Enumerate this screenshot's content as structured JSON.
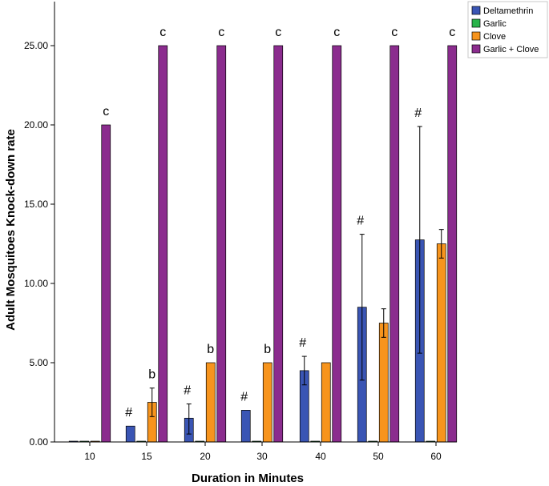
{
  "chart_data": {
    "type": "bar",
    "xlabel": "Duration in Minutes",
    "ylabel": "Adult Mosquitoes Knock-down rate",
    "categories": [
      "10",
      "15",
      "20",
      "30",
      "40",
      "50",
      "60"
    ],
    "ylim": [
      0,
      25
    ],
    "yticks": [
      "0.00",
      "5.00",
      "10.00",
      "15.00",
      "20.00",
      "25.00"
    ],
    "ytick_values": [
      0,
      5,
      10,
      15,
      20,
      25
    ],
    "grid": false,
    "legend_position": "top-right",
    "series": [
      {
        "name": "Deltamethrin",
        "color": "#3a55b4",
        "values": [
          0,
          1,
          1.5,
          2,
          4.5,
          8.5,
          12.75
        ],
        "err_low": [
          0,
          0,
          0.5,
          0,
          3.6,
          3.9,
          5.6
        ],
        "err_high": [
          0,
          0,
          2.4,
          0,
          5.4,
          13.1,
          19.9
        ]
      },
      {
        "name": "Garlic",
        "color": "#29b34a",
        "values": [
          0,
          0,
          0,
          0,
          0,
          0,
          0
        ],
        "err_low": [
          null,
          null,
          null,
          null,
          null,
          null,
          null
        ],
        "err_high": [
          null,
          null,
          null,
          null,
          null,
          null,
          null
        ]
      },
      {
        "name": "Clove",
        "color": "#f7941d",
        "values": [
          0,
          2.5,
          5,
          5,
          5,
          7.5,
          12.5
        ],
        "err_low": [
          null,
          1.6,
          null,
          null,
          null,
          6.6,
          11.6
        ],
        "err_high": [
          null,
          3.4,
          null,
          null,
          null,
          8.4,
          13.4
        ]
      },
      {
        "name": "Garlic + Clove",
        "color": "#8b2c8e",
        "values": [
          20,
          25,
          25,
          25,
          25,
          25,
          25
        ],
        "err_low": [
          null,
          null,
          null,
          null,
          null,
          null,
          null
        ],
        "err_high": [
          null,
          null,
          null,
          null,
          null,
          null,
          null
        ]
      }
    ],
    "annotations": [
      {
        "category": "10",
        "series": "Garlic + Clove",
        "text": "c",
        "y": 20
      },
      {
        "category": "15",
        "series": "Garlic + Clove",
        "text": "c",
        "y": 25
      },
      {
        "category": "20",
        "series": "Garlic + Clove",
        "text": "c",
        "y": 25
      },
      {
        "category": "30",
        "series": "Garlic + Clove",
        "text": "c",
        "y": 25
      },
      {
        "category": "40",
        "series": "Garlic + Clove",
        "text": "c",
        "y": 25
      },
      {
        "category": "50",
        "series": "Garlic + Clove",
        "text": "c",
        "y": 25
      },
      {
        "category": "60",
        "series": "Garlic + Clove",
        "text": "c",
        "y": 25
      },
      {
        "category": "15",
        "series": "Clove",
        "text": "b",
        "y": 3.4
      },
      {
        "category": "20",
        "series": "Clove",
        "text": "b",
        "y": 5
      },
      {
        "category": "30",
        "series": "Clove",
        "text": "b",
        "y": 5
      },
      {
        "category": "15",
        "series": "Deltamethrin",
        "text": "#",
        "y": 1
      },
      {
        "category": "20",
        "series": "Deltamethrin",
        "text": "#",
        "y": 2.4
      },
      {
        "category": "30",
        "series": "Deltamethrin",
        "text": "#",
        "y": 2
      },
      {
        "category": "40",
        "series": "Deltamethrin",
        "text": "#",
        "y": 5.4
      },
      {
        "category": "50",
        "series": "Deltamethrin",
        "text": "#",
        "y": 13.1
      },
      {
        "category": "60",
        "series": "Deltamethrin",
        "text": "#",
        "y": 19.9
      }
    ]
  }
}
